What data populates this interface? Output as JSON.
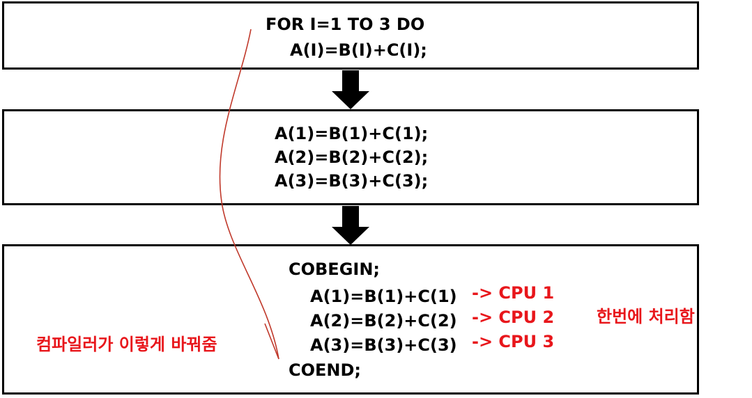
{
  "box1": {
    "lines": [
      "FOR I=1 TO 3 DO",
      "A(I)=B(I)+C(I);"
    ]
  },
  "box2": {
    "lines": [
      "A(1)=B(1)+C(1);",
      "A(2)=B(2)+C(2);",
      "A(3)=B(3)+C(3);"
    ]
  },
  "box3": {
    "begin": "COBEGIN;",
    "statements": [
      "A(1)=B(1)+C(1)",
      "A(2)=B(2)+C(2)",
      "A(3)=B(3)+C(3)"
    ],
    "cpu_labels": [
      "-> CPU 1",
      "-> CPU 2",
      "-> CPU 3"
    ],
    "end": "COEND;"
  },
  "notes": {
    "compiler_note": "컴파일러가 이렇게 바꿔줌",
    "parallel_note": "한번에 처리함"
  },
  "colors": {
    "text": "#000000",
    "annotation": "#e8161b",
    "curve": "#c0392b"
  }
}
